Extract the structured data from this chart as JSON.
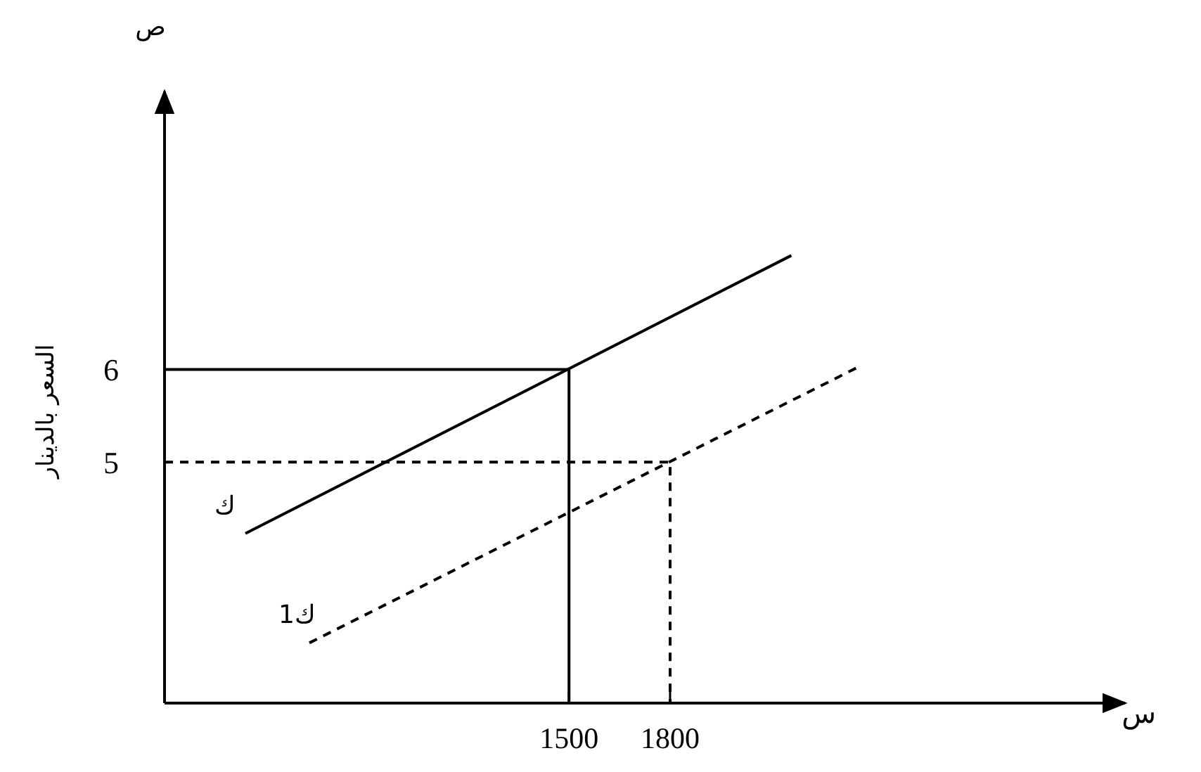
{
  "chart_data": {
    "type": "line",
    "xlabel": "س",
    "ylabel": "السعر بالدينار",
    "annotations": [
      "ص"
    ],
    "xlim": [
      300,
      3150
    ],
    "ylim": [
      2.4,
      9
    ],
    "xticks": [
      1500,
      1800
    ],
    "yticks": [
      5,
      6
    ],
    "series": [
      {
        "name": "ك",
        "color": "#000000",
        "x": [
          540,
          2160
        ],
        "values": [
          4.23,
          7.23
        ],
        "line_style": "solid"
      },
      {
        "name": "ك1",
        "color": "#000000",
        "x": [
          730,
          2360
        ],
        "values": [
          3.05,
          6.03
        ],
        "line_style": "dashed"
      },
      {
        "color": "#000000",
        "x": [
          300,
          1500,
          1500
        ],
        "values": [
          6,
          6,
          2.4
        ],
        "line_style": "solid"
      },
      {
        "color": "#000000",
        "x": [
          300,
          1800,
          1800
        ],
        "values": [
          5,
          5,
          2.4
        ],
        "line_style": "dashed"
      }
    ]
  }
}
